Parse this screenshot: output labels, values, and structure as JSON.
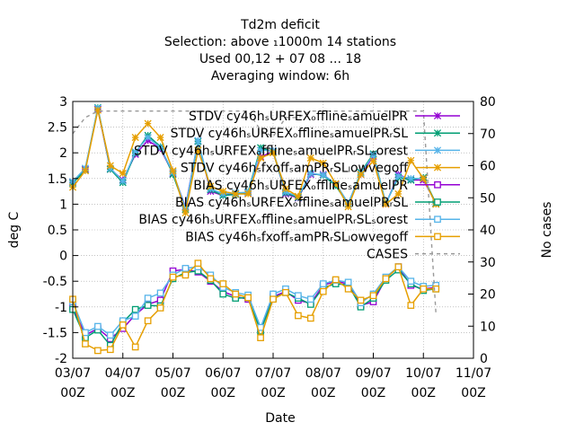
{
  "chart_data": {
    "type": "line",
    "title_lines": [
      "Td2m deficit",
      "Selection: above ₁1000m     14 stations",
      "Used  00,12  + 07 08 ... 18",
      "Averaging window:  6h"
    ],
    "xlabel": "Date",
    "ylabel": "deg C",
    "y2label": "No cases",
    "x_ticks": [
      {
        "line1": "03/07",
        "line2": "00Z",
        "t": 0
      },
      {
        "line1": "04/07",
        "line2": "00Z",
        "t": 4
      },
      {
        "line1": "05/07",
        "line2": "00Z",
        "t": 8
      },
      {
        "line1": "06/07",
        "line2": "00Z",
        "t": 12
      },
      {
        "line1": "07/07",
        "line2": "00Z",
        "t": 16
      },
      {
        "line1": "08/07",
        "line2": "00Z",
        "t": 20
      },
      {
        "line1": "09/07",
        "line2": "00Z",
        "t": 24
      },
      {
        "line1": "10/07",
        "line2": "00Z",
        "t": 28
      },
      {
        "line1": "11/07",
        "line2": "00Z",
        "t": 32
      }
    ],
    "y_ticks": [
      "-2",
      "-1.5",
      "-1",
      "-0.5",
      "0",
      "0.5",
      "1",
      "1.5",
      "2",
      "2.5",
      "3"
    ],
    "y2_ticks": [
      "0",
      "10",
      "20",
      "30",
      "40",
      "50",
      "60",
      "70",
      "80"
    ],
    "ylim": [
      -2,
      3
    ],
    "y2lim": [
      0,
      80
    ],
    "xlim": [
      0,
      32
    ],
    "grid": true,
    "legend_position": "inside-top",
    "x_time_steps": [
      0,
      1,
      2,
      3,
      4,
      5,
      6,
      7,
      8,
      9,
      10,
      11,
      12,
      13,
      14,
      15,
      16,
      17,
      18,
      19,
      20,
      21,
      22,
      23,
      24,
      25,
      26,
      27,
      28,
      29
    ],
    "series": [
      {
        "name": "STDV cy46hₛURFEXₒfflineₛamuelPR",
        "color": "#9400d3",
        "marker": "star",
        "axis": "y",
        "values": [
          1.43,
          1.68,
          2.85,
          1.68,
          1.47,
          1.97,
          2.24,
          2.08,
          1.6,
          0.95,
          2.23,
          1.25,
          1.17,
          1.21,
          1.22,
          1.92,
          2.03,
          1.2,
          1.12,
          1.58,
          1.58,
          1.38,
          1.0,
          1.58,
          1.93,
          1.0,
          1.58,
          1.47,
          1.47,
          1.02
        ]
      },
      {
        "name": "STDV cy46hₛURFEXₒfflineₛamuelPRᵣSL",
        "color": "#009e73",
        "marker": "star",
        "axis": "y",
        "values": [
          1.41,
          1.66,
          2.88,
          1.68,
          1.42,
          2.0,
          2.34,
          2.12,
          1.58,
          0.9,
          2.22,
          1.28,
          1.17,
          1.19,
          1.24,
          2.1,
          2.02,
          1.22,
          1.13,
          1.6,
          1.56,
          1.36,
          1.0,
          1.62,
          1.98,
          1.02,
          1.52,
          1.47,
          1.52,
          1.02
        ]
      },
      {
        "name": "STDV cy46hₛURFEXₒfflineₛamuelPRᵣSLₛorest",
        "color": "#56b4e9",
        "marker": "star",
        "axis": "y",
        "values": [
          1.44,
          1.7,
          2.87,
          1.7,
          1.45,
          2.02,
          2.3,
          2.1,
          1.62,
          0.93,
          2.24,
          1.3,
          1.2,
          1.22,
          1.23,
          2.05,
          2.04,
          1.24,
          1.15,
          1.6,
          1.57,
          1.4,
          1.02,
          1.6,
          1.96,
          1.01,
          1.55,
          1.5,
          1.5,
          1.0
        ]
      },
      {
        "name": "STDV cy46hₛfxoffₛamPRᵣSLₗowvegoff",
        "color": "#e69f00",
        "marker": "star",
        "axis": "y",
        "values": [
          1.33,
          1.65,
          2.83,
          1.75,
          1.6,
          2.3,
          2.57,
          2.3,
          1.65,
          0.83,
          2.05,
          1.35,
          1.25,
          1.2,
          1.2,
          1.9,
          2.0,
          1.3,
          1.15,
          1.9,
          1.8,
          1.4,
          0.95,
          1.58,
          1.84,
          1.0,
          1.2,
          1.85,
          1.5,
          1.0
        ]
      },
      {
        "name": "BIAS cy46hₛURFEXₒfflineₛamuelPR",
        "color": "#9400d3",
        "marker": "square",
        "axis": "y",
        "values": [
          -1.0,
          -1.55,
          -1.42,
          -1.62,
          -1.42,
          -1.15,
          -0.95,
          -0.87,
          -0.3,
          -0.27,
          -0.32,
          -0.5,
          -0.7,
          -0.8,
          -0.85,
          -1.42,
          -0.8,
          -0.7,
          -0.87,
          -0.93,
          -0.58,
          -0.5,
          -0.55,
          -0.97,
          -0.9,
          -0.45,
          -0.22,
          -0.58,
          -0.65,
          -0.62
        ]
      },
      {
        "name": "BIAS cy46hₛURFEXₒfflineₛamuelPRᵣSL",
        "color": "#009e73",
        "marker": "square",
        "axis": "y",
        "values": [
          -1.05,
          -1.6,
          -1.45,
          -1.75,
          -1.3,
          -1.05,
          -0.97,
          -0.98,
          -0.45,
          -0.33,
          -0.3,
          -0.48,
          -0.75,
          -0.83,
          -0.82,
          -1.47,
          -0.83,
          -0.72,
          -0.83,
          -0.95,
          -0.62,
          -0.55,
          -0.57,
          -1.0,
          -0.83,
          -0.48,
          -0.28,
          -0.55,
          -0.68,
          -0.65
        ]
      },
      {
        "name": "BIAS cy46hₛURFEXₒfflineₛamuelPRᵣSLₛorest",
        "color": "#56b4e9",
        "marker": "square",
        "axis": "y",
        "values": [
          -0.9,
          -1.5,
          -1.38,
          -1.55,
          -1.27,
          -1.18,
          -0.83,
          -0.73,
          -0.38,
          -0.25,
          -0.22,
          -0.38,
          -0.62,
          -0.72,
          -0.77,
          -1.4,
          -0.75,
          -0.65,
          -0.78,
          -0.85,
          -0.55,
          -0.48,
          -0.52,
          -0.92,
          -0.75,
          -0.42,
          -0.22,
          -0.5,
          -0.6,
          -0.58
        ]
      },
      {
        "name": "BIAS cy46hₛfxoffₛamPRᵣSLₗowvegoff",
        "color": "#e69f00",
        "marker": "square",
        "axis": "y",
        "values": [
          -0.85,
          -1.72,
          -1.85,
          -1.83,
          -1.35,
          -1.78,
          -1.27,
          -1.02,
          -0.42,
          -0.38,
          -0.15,
          -0.45,
          -0.55,
          -0.75,
          -0.82,
          -1.6,
          -0.85,
          -0.72,
          -1.17,
          -1.22,
          -0.7,
          -0.47,
          -0.65,
          -0.87,
          -0.78,
          -0.45,
          -0.22,
          -0.97,
          -0.65,
          -0.65
        ]
      },
      {
        "name": "CASES",
        "color": "#999999",
        "marker": "none",
        "axis": "y2",
        "dashed": true,
        "values": [
          70,
          75,
          77,
          77,
          77,
          77,
          77,
          77,
          77,
          77,
          77,
          77,
          77,
          77,
          77,
          71,
          69,
          75,
          75,
          77,
          77,
          77,
          77,
          77,
          77,
          77,
          77,
          77,
          77,
          14
        ]
      }
    ]
  }
}
